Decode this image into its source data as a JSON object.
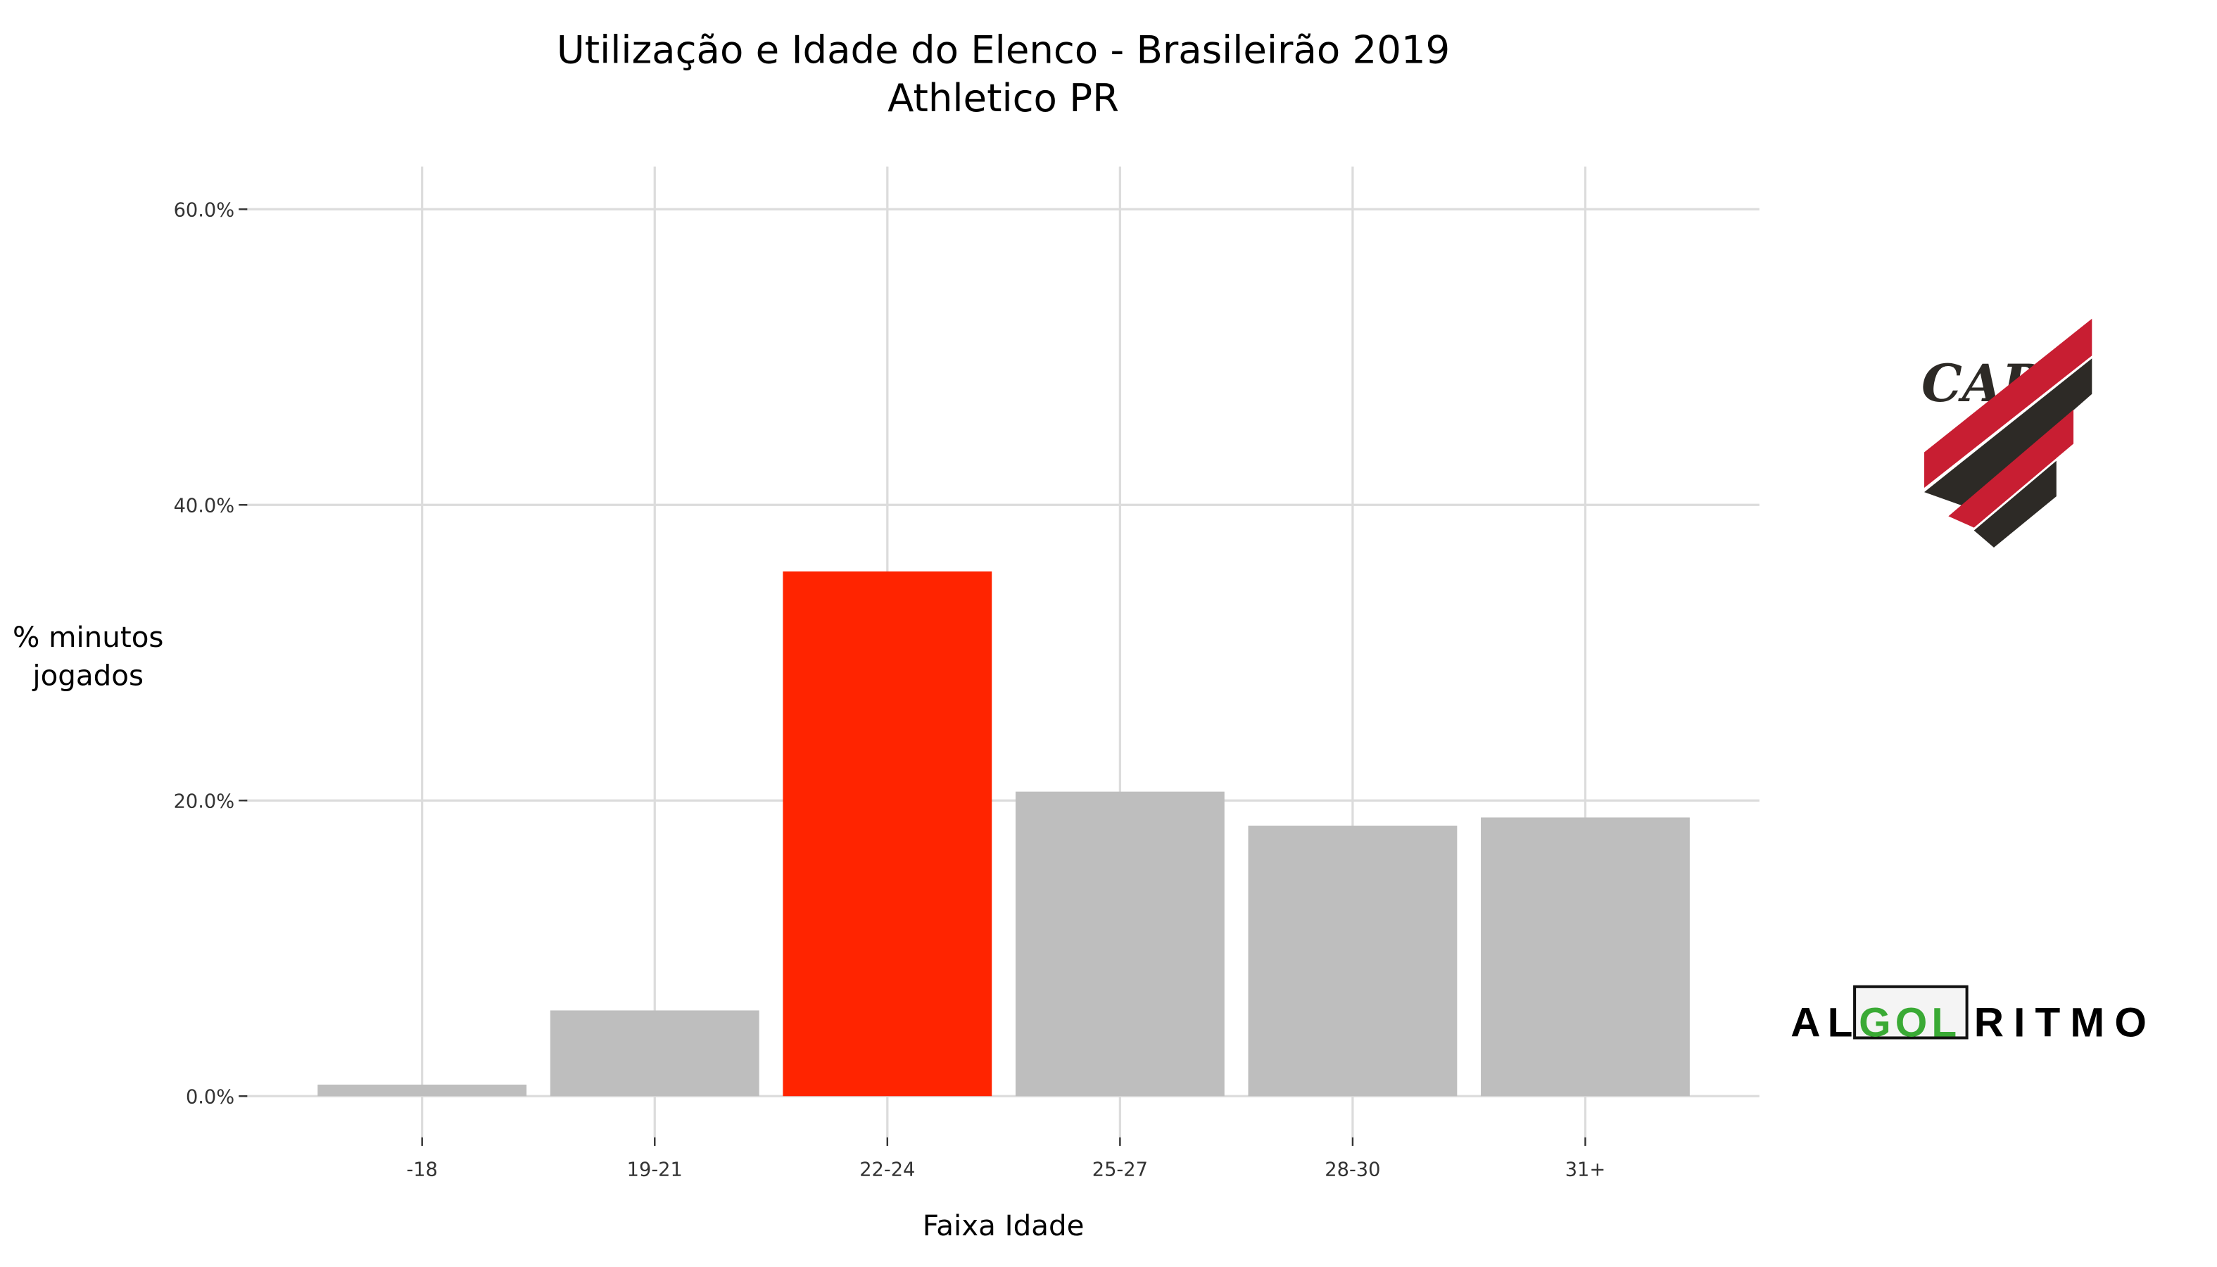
{
  "chart_data": {
    "type": "bar",
    "title": "Utilização e Idade do Elenco - Brasileirão 2019",
    "subtitle": "Athletico PR",
    "xlabel": "Faixa Idade",
    "ylabel": [
      "% minutos",
      "jogados"
    ],
    "categories": [
      "-18",
      "19-21",
      "22-24",
      "25-27",
      "28-30",
      "31+"
    ],
    "values": [
      0.78,
      5.8,
      35.5,
      20.6,
      18.3,
      18.85
    ],
    "value_unit": "%",
    "highlight_index": 2,
    "ylim": [
      0,
      60
    ],
    "yticks": [
      0,
      20,
      40,
      60
    ],
    "ytick_labels": [
      "0.0%",
      "20.0%",
      "40.0%",
      "60.0%"
    ],
    "grid": true,
    "colors": {
      "bar": "#bebebe",
      "highlight": "#ff2400",
      "grid": "#dcdcdc"
    }
  },
  "logos": {
    "club": "CAP",
    "brand": [
      "AL",
      "GOL",
      "RITMO"
    ],
    "colors": {
      "club_red": "#c81e32",
      "club_dark": "#2d2a26",
      "brand_green": "#3aaa35"
    }
  }
}
